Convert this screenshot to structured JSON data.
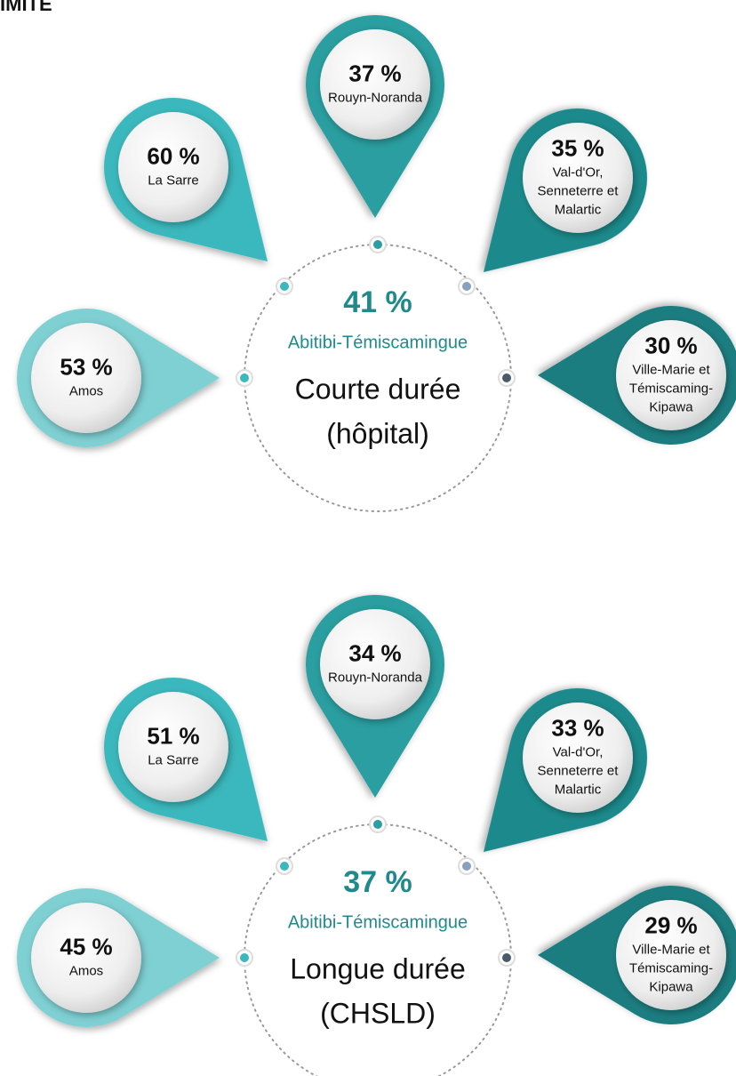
{
  "header": "IMITE",
  "panels": [
    {
      "center": {
        "value": "41 %",
        "region": "Abitibi-Témiscamingue",
        "lines": [
          "Courte durée",
          "(hôpital)"
        ]
      },
      "satellites": [
        {
          "value": "37 %",
          "lines": [
            "Rouyn-Noranda"
          ]
        },
        {
          "value": "60 %",
          "lines": [
            "La Sarre"
          ]
        },
        {
          "value": "35 %",
          "lines": [
            "Val-d'Or,",
            "Senneterre et",
            "Malartic"
          ]
        },
        {
          "value": "53 %",
          "lines": [
            "Amos"
          ]
        },
        {
          "value": "30 %",
          "lines": [
            "Ville-Marie et",
            "Témiscaming-",
            "Kipawa"
          ]
        }
      ]
    },
    {
      "center": {
        "value": "37 %",
        "region": "Abitibi-Témiscamingue",
        "lines": [
          "Longue durée",
          "(CHSLD)"
        ]
      },
      "satellites": [
        {
          "value": "34 %",
          "lines": [
            "Rouyn-Noranda"
          ]
        },
        {
          "value": "51 %",
          "lines": [
            "La Sarre"
          ]
        },
        {
          "value": "33 %",
          "lines": [
            "Val-d'Or,",
            "Senneterre et",
            "Malartic"
          ]
        },
        {
          "value": "45 %",
          "lines": [
            "Amos"
          ]
        },
        {
          "value": "29 %",
          "lines": [
            "Ville-Marie et",
            "Témiscaming-",
            "Kipawa"
          ]
        }
      ]
    }
  ]
}
